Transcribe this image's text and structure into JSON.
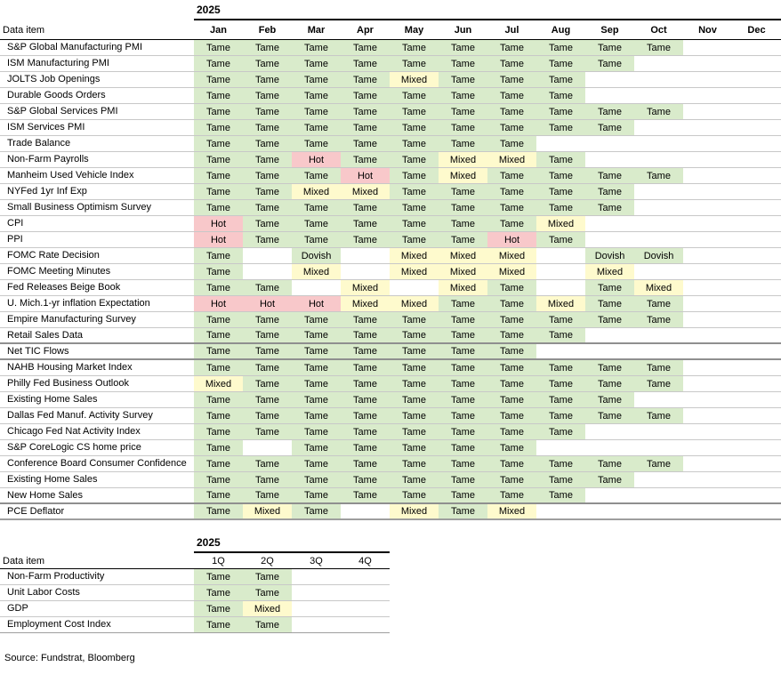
{
  "colors": {
    "tame_bg": "#d9ebcb",
    "mixed_bg": "#fefacd",
    "hot_bg": "#f8c8ca",
    "dovish_bg": "#d9ebcb",
    "grid_line": "#c8c8c8",
    "section_line": "#8f8f8f",
    "header_line": "#000000"
  },
  "chart_data": [
    {
      "type": "heatmap",
      "title": "2025",
      "year": "2025",
      "row_header": "Data item",
      "legend": {
        "Tame": "green",
        "Mixed": "yellow",
        "Hot": "pink",
        "Dovish": "green"
      },
      "columns": [
        "Jan",
        "Feb",
        "Mar",
        "Apr",
        "May",
        "Jun",
        "Jul",
        "Aug",
        "Sep",
        "Oct",
        "Nov",
        "Dec"
      ],
      "rows": [
        {
          "label": "S&P Global Manufacturing PMI",
          "values": [
            "Tame",
            "Tame",
            "Tame",
            "Tame",
            "Tame",
            "Tame",
            "Tame",
            "Tame",
            "Tame",
            "Tame",
            "",
            ""
          ]
        },
        {
          "label": "ISM Manufacturing PMI",
          "values": [
            "Tame",
            "Tame",
            "Tame",
            "Tame",
            "Tame",
            "Tame",
            "Tame",
            "Tame",
            "Tame",
            "",
            "",
            ""
          ]
        },
        {
          "label": "JOLTS Job Openings",
          "values": [
            "Tame",
            "Tame",
            "Tame",
            "Tame",
            "Mixed",
            "Tame",
            "Tame",
            "Tame",
            "",
            "",
            "",
            ""
          ]
        },
        {
          "label": "Durable Goods Orders",
          "values": [
            "Tame",
            "Tame",
            "Tame",
            "Tame",
            "Tame",
            "Tame",
            "Tame",
            "Tame",
            "",
            "",
            "",
            ""
          ]
        },
        {
          "label": "S&P Global Services PMI",
          "values": [
            "Tame",
            "Tame",
            "Tame",
            "Tame",
            "Tame",
            "Tame",
            "Tame",
            "Tame",
            "Tame",
            "Tame",
            "",
            ""
          ]
        },
        {
          "label": "ISM Services PMI",
          "values": [
            "Tame",
            "Tame",
            "Tame",
            "Tame",
            "Tame",
            "Tame",
            "Tame",
            "Tame",
            "Tame",
            "",
            "",
            ""
          ]
        },
        {
          "label": "Trade Balance",
          "values": [
            "Tame",
            "Tame",
            "Tame",
            "Tame",
            "Tame",
            "Tame",
            "Tame",
            "",
            "",
            "",
            "",
            ""
          ]
        },
        {
          "label": "Non-Farm Payrolls",
          "values": [
            "Tame",
            "Tame",
            "Hot",
            "Tame",
            "Tame",
            "Mixed",
            "Mixed",
            "Tame",
            "",
            "",
            "",
            ""
          ]
        },
        {
          "label": "Manheim Used Vehicle Index",
          "values": [
            "Tame",
            "Tame",
            "Tame",
            "Hot",
            "Tame",
            "Mixed",
            "Tame",
            "Tame",
            "Tame",
            "Tame",
            "",
            ""
          ]
        },
        {
          "label": "NYFed 1yr Inf Exp",
          "values": [
            "Tame",
            "Tame",
            "Mixed",
            "Mixed",
            "Tame",
            "Tame",
            "Tame",
            "Tame",
            "Tame",
            "",
            "",
            ""
          ]
        },
        {
          "label": "Small Business Optimism Survey",
          "values": [
            "Tame",
            "Tame",
            "Tame",
            "Tame",
            "Tame",
            "Tame",
            "Tame",
            "Tame",
            "Tame",
            "",
            "",
            ""
          ]
        },
        {
          "label": "CPI",
          "values": [
            "Hot",
            "Tame",
            "Tame",
            "Tame",
            "Tame",
            "Tame",
            "Tame",
            "Mixed",
            "",
            "",
            "",
            ""
          ]
        },
        {
          "label": "PPI",
          "values": [
            "Hot",
            "Tame",
            "Tame",
            "Tame",
            "Tame",
            "Tame",
            "Hot",
            "Tame",
            "",
            "",
            "",
            ""
          ]
        },
        {
          "label": "FOMC Rate Decision",
          "values": [
            "Tame",
            "",
            "Dovish",
            "",
            "Mixed",
            "Mixed",
            "Mixed",
            "",
            "Dovish",
            "Dovish",
            "",
            ""
          ]
        },
        {
          "label": "FOMC Meeting Minutes",
          "values": [
            "Tame",
            "",
            "Mixed",
            "",
            "Mixed",
            "Mixed",
            "Mixed",
            "",
            "Mixed",
            "",
            "",
            ""
          ]
        },
        {
          "label": "Fed Releases Beige Book",
          "values": [
            "Tame",
            "Tame",
            "",
            "Mixed",
            "",
            "Mixed",
            "Tame",
            "",
            "Tame",
            "Mixed",
            "",
            ""
          ]
        },
        {
          "label": "U. Mich.1-yr inflation Expectation",
          "values": [
            "Hot",
            "Hot",
            "Hot",
            "Mixed",
            "Mixed",
            "Tame",
            "Tame",
            "Mixed",
            "Tame",
            "Tame",
            "",
            ""
          ]
        },
        {
          "label": "Empire Manufacturing Survey",
          "values": [
            "Tame",
            "Tame",
            "Tame",
            "Tame",
            "Tame",
            "Tame",
            "Tame",
            "Tame",
            "Tame",
            "Tame",
            "",
            ""
          ]
        },
        {
          "label": "Retail Sales Data",
          "values": [
            "Tame",
            "Tame",
            "Tame",
            "Tame",
            "Tame",
            "Tame",
            "Tame",
            "Tame",
            "",
            "",
            "",
            ""
          ]
        },
        {
          "label": "Net TIC Flows",
          "values": [
            "Tame",
            "Tame",
            "Tame",
            "Tame",
            "Tame",
            "Tame",
            "Tame",
            "",
            "",
            "",
            "",
            ""
          ]
        },
        {
          "label": "NAHB Housing Market Index",
          "values": [
            "Tame",
            "Tame",
            "Tame",
            "Tame",
            "Tame",
            "Tame",
            "Tame",
            "Tame",
            "Tame",
            "Tame",
            "",
            ""
          ]
        },
        {
          "label": "Philly Fed Business Outlook",
          "values": [
            "Mixed",
            "Tame",
            "Tame",
            "Tame",
            "Tame",
            "Tame",
            "Tame",
            "Tame",
            "Tame",
            "Tame",
            "",
            ""
          ]
        },
        {
          "label": "Existing Home Sales",
          "values": [
            "Tame",
            "Tame",
            "Tame",
            "Tame",
            "Tame",
            "Tame",
            "Tame",
            "Tame",
            "Tame",
            "",
            "",
            ""
          ]
        },
        {
          "label": "Dallas Fed Manuf. Activity Survey",
          "values": [
            "Tame",
            "Tame",
            "Tame",
            "Tame",
            "Tame",
            "Tame",
            "Tame",
            "Tame",
            "Tame",
            "Tame",
            "",
            ""
          ]
        },
        {
          "label": "Chicago Fed Nat Activity Index",
          "values": [
            "Tame",
            "Tame",
            "Tame",
            "Tame",
            "Tame",
            "Tame",
            "Tame",
            "Tame",
            "",
            "",
            "",
            ""
          ]
        },
        {
          "label": "S&P CoreLogic CS home price",
          "values": [
            "Tame",
            "",
            "Tame",
            "Tame",
            "Tame",
            "Tame",
            "Tame",
            "",
            "",
            "",
            "",
            ""
          ]
        },
        {
          "label": "Conference Board Consumer Confidence",
          "values": [
            "Tame",
            "Tame",
            "Tame",
            "Tame",
            "Tame",
            "Tame",
            "Tame",
            "Tame",
            "Tame",
            "Tame",
            "",
            ""
          ]
        },
        {
          "label": "Existing Home Sales",
          "values": [
            "Tame",
            "Tame",
            "Tame",
            "Tame",
            "Tame",
            "Tame",
            "Tame",
            "Tame",
            "Tame",
            "",
            "",
            ""
          ]
        },
        {
          "label": "New Home Sales",
          "values": [
            "Tame",
            "Tame",
            "Tame",
            "Tame",
            "Tame",
            "Tame",
            "Tame",
            "Tame",
            "",
            "",
            "",
            ""
          ]
        },
        {
          "label": "PCE Deflator",
          "values": [
            "Tame",
            "Mixed",
            "Tame",
            "",
            "Mixed",
            "Tame",
            "Mixed",
            "",
            "",
            "",
            "",
            ""
          ]
        }
      ]
    },
    {
      "type": "heatmap",
      "title": "2025",
      "year": "2025",
      "row_header": "Data item",
      "columns": [
        "1Q",
        "2Q",
        "3Q",
        "4Q"
      ],
      "rows": [
        {
          "label": "Non-Farm Productivity",
          "values": [
            "Tame",
            "Tame",
            "",
            ""
          ]
        },
        {
          "label": "Unit Labor Costs",
          "values": [
            "Tame",
            "Tame",
            "",
            ""
          ]
        },
        {
          "label": "GDP",
          "values": [
            "Tame",
            "Mixed",
            "",
            ""
          ]
        },
        {
          "label": "Employment Cost Index",
          "values": [
            "Tame",
            "Tame",
            "",
            ""
          ]
        }
      ]
    }
  ],
  "source_note": "Source: Fundstrat, Bloomberg"
}
